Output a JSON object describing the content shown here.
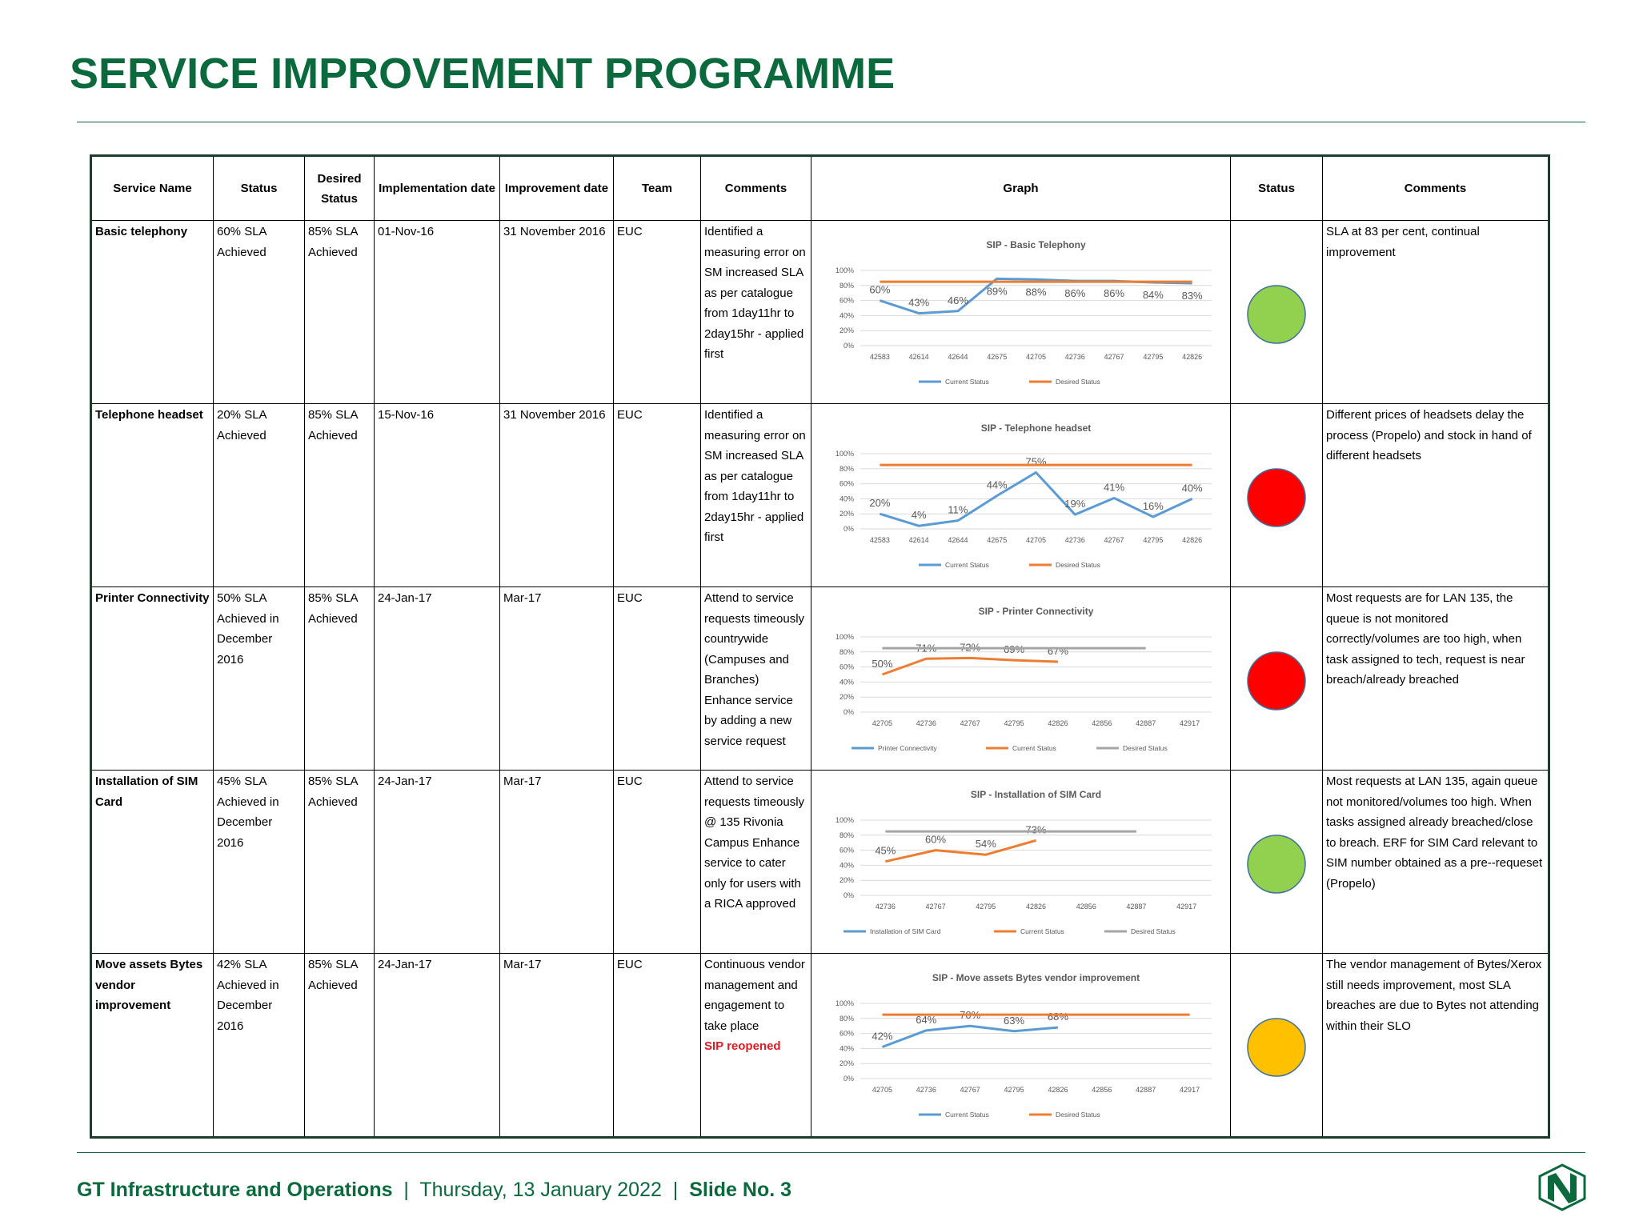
{
  "header": {
    "title": "SERVICE IMPROVEMENT PROGRAMME"
  },
  "table": {
    "columns": [
      "Service Name",
      "Status",
      "Desired Status",
      "Implementation date",
      "Improvement date",
      "Team",
      "Comments",
      "Graph",
      "Status",
      "Comments"
    ],
    "rows": [
      {
        "service_name": "Basic telephony",
        "status": "60% SLA Achieved",
        "desired_status": "85% SLA Achieved",
        "implementation_date": "01-Nov-16",
        "improvement_date": "31 November 2016",
        "team": "EUC",
        "comments": "Identified a measuring error on SM increased SLA as per catalogue from 1day11hr to 2day15hr - applied first",
        "status_color": "#92d050",
        "status_comments": "SLA at 83 per cent, continual improvement"
      },
      {
        "service_name": "Telephone headset",
        "status": "20% SLA Achieved",
        "desired_status": "85% SLA Achieved",
        "implementation_date": "15-Nov-16",
        "improvement_date": "31 November 2016",
        "team": "EUC",
        "comments": "Identified a measuring error on SM increased SLA as per catalogue from 1day11hr to 2day15hr - applied first",
        "status_color": "#ff0000",
        "status_comments": "Different prices of headsets delay the process (Propelo) and stock in hand of different headsets"
      },
      {
        "service_name": "Printer Connectivity",
        "status": "50% SLA Achieved in December 2016",
        "desired_status": "85% SLA Achieved",
        "implementation_date": "24-Jan-17",
        "improvement_date": "Mar-17",
        "team": "EUC",
        "comments": "Attend to service requests timeously countrywide (Campuses and Branches) Enhance service by adding a new service request",
        "status_color": "#ff0000",
        "status_comments": "Most requests are for LAN 135, the queue is not monitored correctly/volumes are too high, when task assigned to tech, request is near breach/already breached"
      },
      {
        "service_name": "Installation of SIM Card",
        "status": "45% SLA Achieved in December 2016",
        "desired_status": "85% SLA Achieved",
        "implementation_date": "24-Jan-17",
        "improvement_date": "Mar-17",
        "team": "EUC",
        "comments": "Attend to service requests timeously @ 135 Rivonia Campus Enhance service to cater only for users with a RICA approved",
        "status_color": "#92d050",
        "status_comments": "Most requests at LAN 135, again queue not monitored/volumes too high. When tasks assigned already breached/close to breach. ERF for SIM Card relevant to SIM number obtained as a pre--requeset (Propelo)"
      },
      {
        "service_name": "Move assets Bytes vendor improvement",
        "status": "42% SLA Achieved in December 2016",
        "desired_status": "85% SLA Achieved",
        "implementation_date": "24-Jan-17",
        "improvement_date": "Mar-17",
        "team": "EUC",
        "comments": "Continuous vendor management and engagement to take place",
        "comments_note": "SIP reopened",
        "status_color": "#ffc000",
        "status_comments": "The vendor management of Bytes/Xerox still needs improvement, most SLA breaches are due to Bytes not attending within their SLO"
      }
    ]
  },
  "chart_data": [
    {
      "type": "line",
      "title": "SIP - Basic Telephony",
      "categories": [
        42583,
        42614,
        42644,
        42675,
        42705,
        42736,
        42767,
        42795,
        42826
      ],
      "series": [
        {
          "name": "Current Status",
          "color": "#5b9bd5",
          "values": [
            60,
            43,
            46,
            89,
            88,
            86,
            86,
            84,
            83
          ],
          "value_labels": [
            "60%",
            "43%",
            "46%",
            "89%",
            "88%",
            "86%",
            "86%",
            "84%",
            "83%"
          ]
        },
        {
          "name": "Desired Status",
          "color": "#ed7d31",
          "values": [
            85,
            85,
            85,
            85,
            85,
            85,
            85,
            85,
            85
          ]
        }
      ],
      "ylim": [
        0,
        100
      ],
      "yticks": [
        {
          "value": 0,
          "label": "0%"
        },
        {
          "value": 20,
          "label": "20%"
        },
        {
          "value": 40,
          "label": "40%"
        },
        {
          "value": 60,
          "label": "60%"
        },
        {
          "value": 80,
          "label": "80%"
        },
        {
          "value": 100,
          "label": "100%"
        }
      ],
      "grid": true,
      "legend": "bottom"
    },
    {
      "type": "line",
      "title": "SIP - Telephone headset",
      "categories": [
        42583,
        42614,
        42644,
        42675,
        42705,
        42736,
        42767,
        42795,
        42826
      ],
      "series": [
        {
          "name": "Current Status",
          "color": "#5b9bd5",
          "values": [
            20,
            4,
            11,
            44,
            75,
            19,
            41,
            16,
            40
          ],
          "value_labels": [
            "20%",
            "4%",
            "11%",
            "44%",
            "75%",
            "19%",
            "41%",
            "16%",
            "40%"
          ]
        },
        {
          "name": "Desired Status",
          "color": "#ed7d31",
          "values": [
            85,
            85,
            85,
            85,
            85,
            85,
            85,
            85,
            85
          ]
        }
      ],
      "ylim": [
        0,
        100
      ],
      "yticks": [
        {
          "value": 0,
          "label": "0%"
        },
        {
          "value": 20,
          "label": "20%"
        },
        {
          "value": 40,
          "label": "40%"
        },
        {
          "value": 60,
          "label": "60%"
        },
        {
          "value": 80,
          "label": "80%"
        },
        {
          "value": 100,
          "label": "100%"
        }
      ],
      "grid": true,
      "legend": "bottom"
    },
    {
      "type": "line",
      "title": "SIP - Printer Connectivity",
      "categories": [
        42705,
        42736,
        42767,
        42795,
        42826,
        42856,
        42887,
        42917
      ],
      "series": [
        {
          "name": "Printer Connectivity",
          "color": "#5b9bd5",
          "values": [
            null,
            null,
            null,
            null,
            null,
            null,
            null,
            null
          ]
        },
        {
          "name": "Current Status",
          "color": "#ed7d31",
          "values": [
            50,
            71,
            72,
            69,
            67,
            null,
            null,
            null
          ],
          "value_labels": [
            "50%",
            "71%",
            "72%",
            "69%",
            "67%",
            null,
            null,
            null
          ]
        },
        {
          "name": "Desired Status",
          "color": "#a5a5a5",
          "values": [
            85,
            85,
            85,
            85,
            85,
            85,
            85,
            null
          ]
        }
      ],
      "ylim": [
        0,
        100
      ],
      "yticks": [
        {
          "value": 0,
          "label": "0%"
        },
        {
          "value": 20,
          "label": "20%"
        },
        {
          "value": 40,
          "label": "40%"
        },
        {
          "value": 60,
          "label": "60%"
        },
        {
          "value": 80,
          "label": "80%"
        },
        {
          "value": 100,
          "label": "100%"
        }
      ],
      "grid": true,
      "legend": "bottom"
    },
    {
      "type": "line",
      "title": "SIP - Installation  of SIM Card",
      "categories": [
        42736,
        42767,
        42795,
        42826,
        42856,
        42887,
        42917
      ],
      "series": [
        {
          "name": "Installation of SIM Card",
          "color": "#5b9bd5",
          "values": [
            null,
            null,
            null,
            null,
            null,
            null,
            null
          ]
        },
        {
          "name": "Current Status",
          "color": "#ed7d31",
          "values": [
            45,
            60,
            54,
            73,
            null,
            null,
            null
          ],
          "value_labels": [
            "45%",
            "60%",
            "54%",
            "73%",
            null,
            null,
            null
          ]
        },
        {
          "name": "Desired Status",
          "color": "#a5a5a5",
          "values": [
            85,
            85,
            85,
            85,
            85,
            85,
            null
          ]
        }
      ],
      "ylim": [
        0,
        100
      ],
      "yticks": [
        {
          "value": 0,
          "label": "0%"
        },
        {
          "value": 20,
          "label": "20%"
        },
        {
          "value": 40,
          "label": "40%"
        },
        {
          "value": 60,
          "label": "60%"
        },
        {
          "value": 80,
          "label": "80%"
        },
        {
          "value": 100,
          "label": "100%"
        }
      ],
      "grid": true,
      "legend": "bottom"
    },
    {
      "type": "line",
      "title": "SIP - Move assets Bytes vendor improvement",
      "categories": [
        42705,
        42736,
        42767,
        42795,
        42826,
        42856,
        42887,
        42917
      ],
      "series": [
        {
          "name": "Current Status",
          "color": "#5b9bd5",
          "values": [
            42,
            64,
            70,
            63,
            68,
            null,
            null,
            null
          ],
          "value_labels": [
            "42%",
            "64%",
            "70%",
            "63%",
            "68%",
            null,
            null,
            null
          ]
        },
        {
          "name": "Desired Status",
          "color": "#ed7d31",
          "values": [
            85,
            85,
            85,
            85,
            85,
            85,
            85,
            85
          ]
        }
      ],
      "ylim": [
        0,
        100
      ],
      "yticks": [
        {
          "value": 0,
          "label": "0%"
        },
        {
          "value": 20,
          "label": "20%"
        },
        {
          "value": 40,
          "label": "40%"
        },
        {
          "value": 60,
          "label": "60%"
        },
        {
          "value": 80,
          "label": "80%"
        },
        {
          "value": 100,
          "label": "100%"
        }
      ],
      "grid": true,
      "legend": "bottom"
    }
  ],
  "footer": {
    "org": "GT Infrastructure and Operations",
    "separator": "|",
    "date": "Thursday, 13 January 2022",
    "slide": "Slide No. 3"
  }
}
